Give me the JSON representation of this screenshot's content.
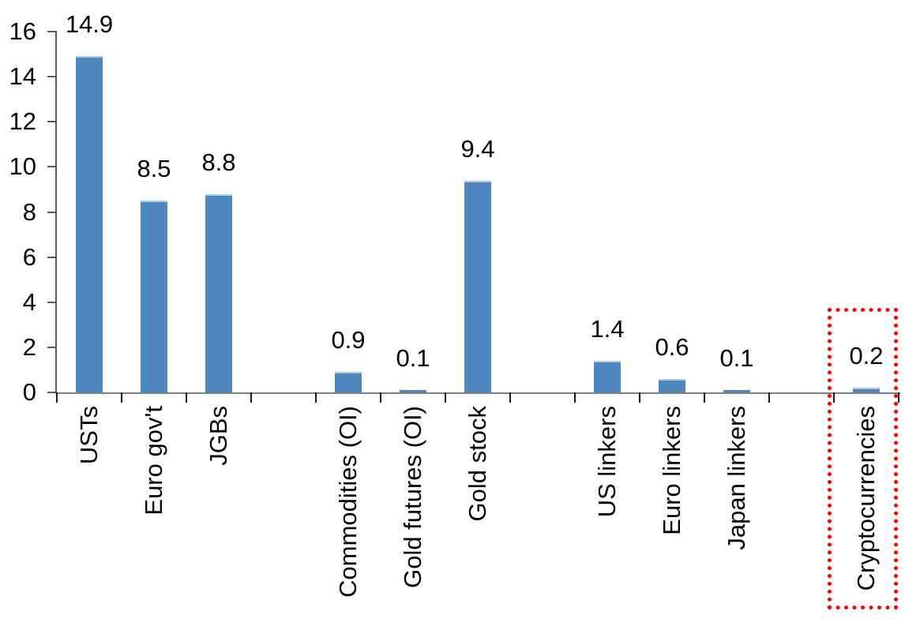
{
  "page": {
    "background": "#FFFFFF"
  },
  "chart_data": {
    "type": "bar",
    "title": "",
    "xlabel": "",
    "ylabel": "",
    "categories": [
      "USTs",
      "Euro gov't",
      "JGBs",
      "Commodities (OI)",
      "Gold futures (OI)",
      "Gold stock",
      "US linkers",
      "Euro linkers",
      "Japan linkers",
      "Cryptocurrencies"
    ],
    "values": [
      14.9,
      8.5,
      8.8,
      0.9,
      0.1,
      9.4,
      1.4,
      0.6,
      0.1,
      0.2
    ],
    "value_labels_shown": true,
    "value_label_decimals": 1,
    "slot_layout": [
      "USTs",
      "Euro gov't",
      "JGBs",
      null,
      "Commodities (OI)",
      "Gold futures (OI)",
      "Gold stock",
      null,
      "US linkers",
      "Euro linkers",
      "Japan linkers",
      null,
      "Cryptocurrencies"
    ],
    "yticks": [
      0,
      2,
      4,
      6,
      8,
      10,
      12,
      14,
      16
    ],
    "ylim": [
      0,
      16
    ],
    "grid": false,
    "legend_position": "none",
    "x_labels_rotation_deg": -90,
    "highlight": {
      "category": "Cryptocurrencies",
      "style": "red-dotted-rectangle",
      "color": "#FF0000"
    },
    "colors": {
      "bar": "#4E87BE",
      "bar_top_highlight": "#AECBE4",
      "y_axis": "#595959",
      "x_axis": "#808080",
      "x_tick": "#1A1A1A",
      "text": "#000000"
    }
  }
}
